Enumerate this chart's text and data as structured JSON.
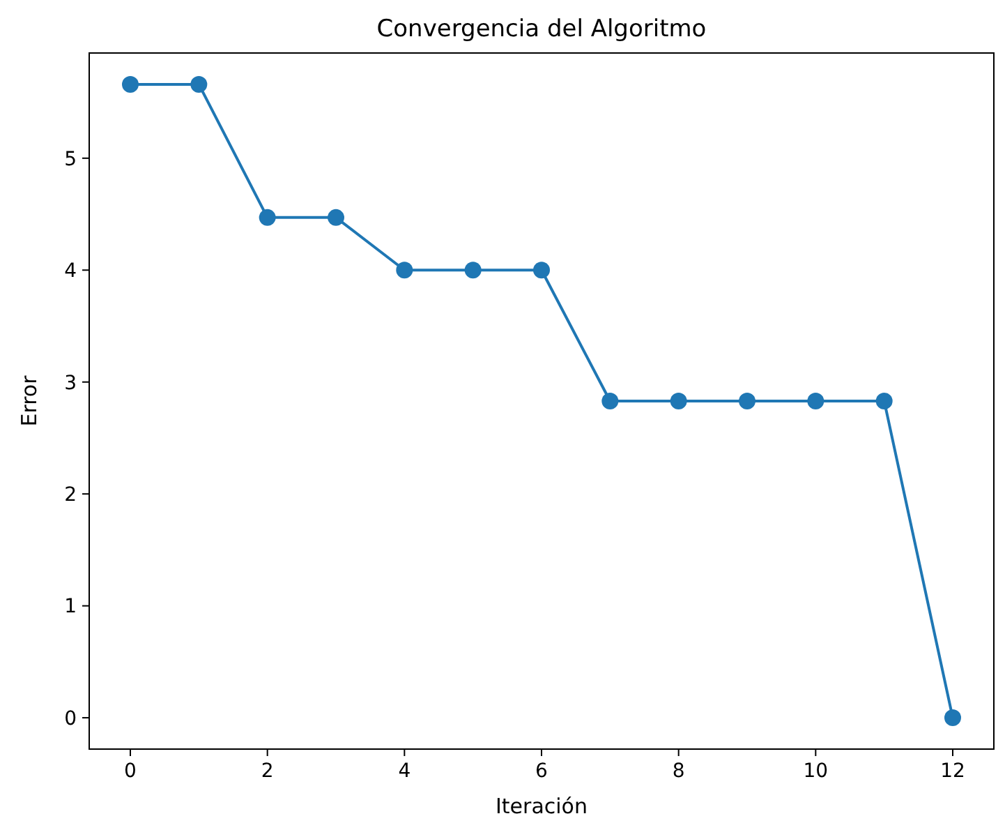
{
  "chart_data": {
    "type": "line",
    "title": "Convergencia del Algoritmo",
    "xlabel": "Iteración",
    "ylabel": "Error",
    "x": [
      0,
      1,
      2,
      3,
      4,
      5,
      6,
      7,
      8,
      9,
      10,
      11,
      12
    ],
    "series": [
      {
        "color": "#1f77b4",
        "values": [
          5.66,
          5.66,
          4.47,
          4.47,
          4.0,
          4.0,
          4.0,
          2.83,
          2.83,
          2.83,
          2.83,
          2.83,
          0
        ]
      }
    ],
    "xlim": [
      -0.6,
      12.6
    ],
    "xticks": [
      0,
      2,
      4,
      6,
      8,
      10,
      12
    ],
    "ylim": [
      -0.28,
      5.94
    ],
    "yticks": [
      0,
      1,
      2,
      3,
      4,
      5
    ],
    "grid": false,
    "marker": "circle",
    "line_style": "solid"
  }
}
